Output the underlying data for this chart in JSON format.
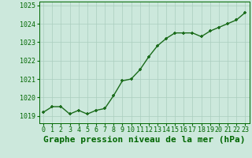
{
  "x": [
    0,
    1,
    2,
    3,
    4,
    5,
    6,
    7,
    8,
    9,
    10,
    11,
    12,
    13,
    14,
    15,
    16,
    17,
    18,
    19,
    20,
    21,
    22,
    23
  ],
  "y": [
    1019.2,
    1019.5,
    1019.5,
    1019.1,
    1019.3,
    1019.1,
    1019.3,
    1019.4,
    1020.1,
    1020.9,
    1021.0,
    1021.5,
    1022.2,
    1022.8,
    1023.2,
    1023.5,
    1023.5,
    1023.5,
    1023.3,
    1023.6,
    1023.8,
    1024.0,
    1024.2,
    1024.6
  ],
  "line_color": "#1a6b1a",
  "marker_color": "#1a6b1a",
  "bg_color": "#cce8dc",
  "grid_color": "#aacebe",
  "xlabel": "Graphe pression niveau de la mer (hPa)",
  "xlabel_color": "#006600",
  "ylim": [
    1018.6,
    1025.2
  ],
  "yticks": [
    1019,
    1020,
    1021,
    1022,
    1023,
    1024,
    1025
  ],
  "ytick_labels": [
    "1019",
    "1020",
    "1021",
    "1022",
    "1023",
    "1024",
    "1025"
  ],
  "xticks": [
    0,
    1,
    2,
    3,
    4,
    5,
    6,
    7,
    8,
    9,
    10,
    11,
    12,
    13,
    14,
    15,
    16,
    17,
    18,
    19,
    20,
    21,
    22,
    23
  ],
  "tick_color": "#006600",
  "tick_fontsize": 6.0,
  "xlabel_fontsize": 8.0,
  "line_width": 1.0,
  "marker_size": 3.5,
  "xlim": [
    -0.5,
    23.5
  ]
}
